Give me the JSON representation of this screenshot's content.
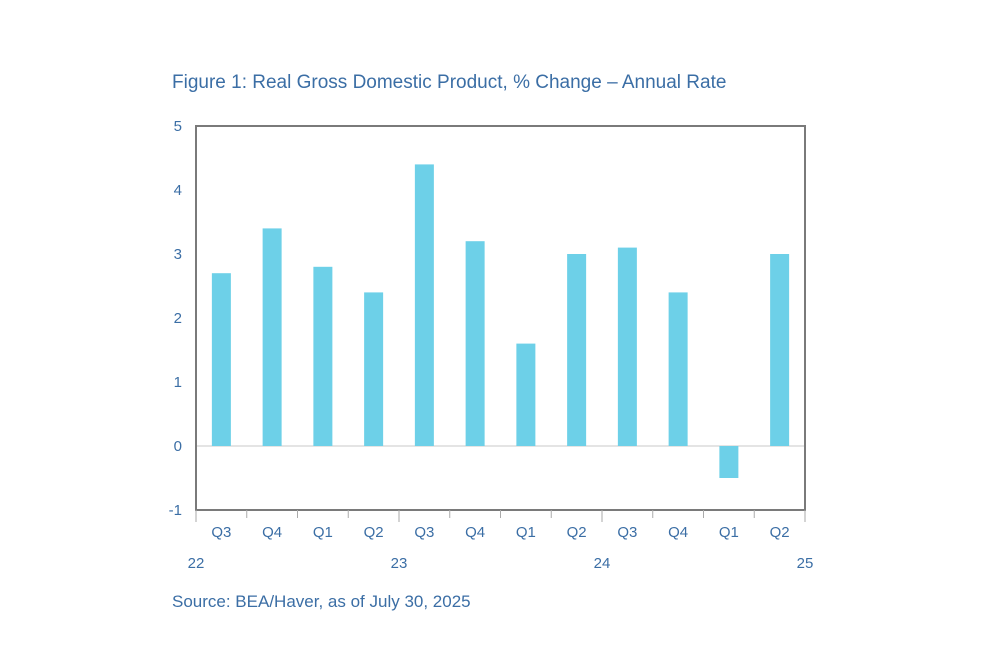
{
  "chart_data": {
    "type": "bar",
    "title": "Figure 1: Real Gross Domestic Product, % Change – Annual Rate",
    "source": "Source: BEA/Haver, as of July 30, 2025",
    "categories": [
      "Q3",
      "Q4",
      "Q1",
      "Q2",
      "Q3",
      "Q4",
      "Q1",
      "Q2",
      "Q3",
      "Q4",
      "Q1",
      "Q2"
    ],
    "year_labels": [
      {
        "label": "22",
        "position": 0
      },
      {
        "label": "23",
        "position": 4
      },
      {
        "label": "24",
        "position": 8
      },
      {
        "label": "25",
        "position": 12
      }
    ],
    "values": [
      2.7,
      3.4,
      2.8,
      2.4,
      4.4,
      3.2,
      1.6,
      3.0,
      3.1,
      2.4,
      -0.5,
      3.0
    ],
    "ylim": [
      -1,
      5
    ],
    "yticks": [
      -1,
      0,
      1,
      2,
      3,
      4,
      5
    ],
    "xlabel": "",
    "ylabel": "",
    "grid": false,
    "bar_color": "#6dd0e8",
    "text_color": "#3b6ea5",
    "frame_color": "#7a7a7a"
  }
}
